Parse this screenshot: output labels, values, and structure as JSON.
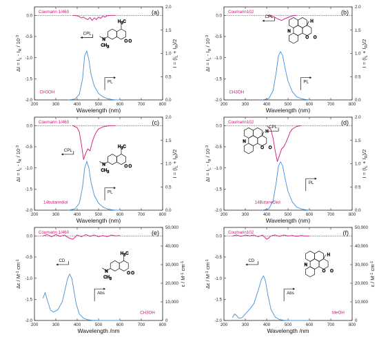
{
  "colors": {
    "cpl_cd": "#d4147a",
    "pl_abs": "#3f8fd9",
    "axis": "#222222",
    "baseline": "#333333"
  },
  "chart_data": [
    {
      "panel": "(a)",
      "type": "line",
      "dye": "Coumarin 1/460",
      "solvent": "CH3OH",
      "xlabel": "Wavelength (nm)",
      "ylabel_left": "ΔI = I_L - I_R / 10^-3",
      "ylabel_right": "I = (I_L + I_R)/2",
      "xlim": [
        200,
        800
      ],
      "ylim_left": [
        -2.0,
        0.2
      ],
      "ylim_right": [
        0.0,
        2.0
      ],
      "xticks": [
        "200",
        "300",
        "400",
        "500",
        "600",
        "700",
        "800"
      ],
      "yticks_left": [
        "0.0",
        "-0.5",
        "-1.0",
        "-1.5",
        "-2.0"
      ],
      "yticks_right": [
        "0.0",
        "0.5",
        "1.0",
        "1.5",
        "2.0"
      ],
      "annotations": [
        {
          "text": "CPL",
          "dir": "left"
        },
        {
          "text": "PL",
          "dir": "right"
        }
      ],
      "series": [
        {
          "name": "CPL",
          "axis": "left",
          "x": [
            380,
            400,
            410,
            420,
            430,
            440,
            450,
            460,
            470,
            480,
            490,
            500,
            510,
            520,
            530,
            540,
            560,
            580
          ],
          "y": [
            0.0,
            -0.01,
            -0.03,
            -0.06,
            -0.04,
            -0.08,
            -0.1,
            -0.05,
            -0.12,
            -0.06,
            -0.1,
            -0.04,
            -0.07,
            -0.02,
            -0.04,
            -0.01,
            0.0,
            0.0
          ]
        },
        {
          "name": "PL",
          "axis": "right",
          "x": [
            360,
            390,
            410,
            425,
            435,
            445,
            455,
            465,
            480,
            500,
            520,
            540,
            560,
            580,
            600
          ],
          "y": [
            0.0,
            0.02,
            0.12,
            0.45,
            0.95,
            1.05,
            0.85,
            0.55,
            0.3,
            0.14,
            0.07,
            0.03,
            0.01,
            0.0,
            0.0
          ]
        }
      ]
    },
    {
      "panel": "(b)",
      "type": "line",
      "dye": "Coumarin102",
      "solvent": "CH3OH",
      "xlabel": "Wavelength (nm)",
      "ylabel_left": "ΔI = I_L - I_R / 10^-3",
      "ylabel_right": "I = (I_L + I_R)/2",
      "xlim": [
        200,
        800
      ],
      "ylim_left": [
        -2.0,
        0.2
      ],
      "ylim_right": [
        0.0,
        2.0
      ],
      "xticks": [
        "200",
        "300",
        "400",
        "500",
        "600",
        "700",
        "800"
      ],
      "yticks_left": [
        "0.0",
        "-0.5",
        "-1.0",
        "-1.5",
        "-2.0"
      ],
      "yticks_right": [
        "0.0",
        "0.5",
        "1.0",
        "1.5",
        "2.0"
      ],
      "annotations": [
        {
          "text": "CPL",
          "dir": "left"
        },
        {
          "text": "PL",
          "dir": "right"
        }
      ],
      "series": [
        {
          "name": "CPL",
          "axis": "left",
          "x": [
            400,
            420,
            430,
            440,
            450,
            460,
            470,
            480,
            490,
            500,
            510,
            520,
            540
          ],
          "y": [
            0.0,
            -0.02,
            -0.03,
            -0.05,
            -0.08,
            -0.1,
            -0.12,
            -0.09,
            -0.07,
            -0.05,
            -0.03,
            -0.01,
            0.0
          ]
        },
        {
          "name": "PL",
          "axis": "right",
          "x": [
            380,
            410,
            430,
            445,
            455,
            465,
            475,
            485,
            500,
            520,
            540,
            560,
            580,
            600
          ],
          "y": [
            0.0,
            0.03,
            0.2,
            0.6,
            0.95,
            1.04,
            0.95,
            0.7,
            0.4,
            0.18,
            0.07,
            0.03,
            0.01,
            0.0
          ]
        }
      ]
    },
    {
      "panel": "(c)",
      "type": "line",
      "dye": "Coumarin 1/460",
      "solvent": "14butanediol",
      "xlabel": "Wavelength (nm)",
      "ylabel_left": "ΔI = I_L - I_R / 10^-3",
      "ylabel_right": "I = (I_L + I_R)/2",
      "xlim": [
        200,
        800
      ],
      "ylim_left": [
        -2.0,
        0.2
      ],
      "ylim_right": [
        0.0,
        2.0
      ],
      "xticks": [
        "200",
        "300",
        "400",
        "500",
        "600",
        "700",
        "800"
      ],
      "yticks_left": [
        "0.0",
        "-0.5",
        "-1.0",
        "-1.5",
        "-2.0"
      ],
      "yticks_right": [
        "0.0",
        "0.5",
        "1.0",
        "1.5",
        "2.0"
      ],
      "annotations": [
        {
          "text": "CPL",
          "dir": "left"
        },
        {
          "text": "PL",
          "dir": "right"
        }
      ],
      "series": [
        {
          "name": "CPL",
          "axis": "left",
          "x": [
            380,
            400,
            410,
            420,
            430,
            440,
            450,
            460,
            470,
            480,
            490,
            500,
            520,
            540,
            560,
            580
          ],
          "y": [
            0.0,
            -0.05,
            -0.15,
            -0.45,
            -0.8,
            -0.65,
            -0.55,
            -0.6,
            -0.4,
            -0.25,
            -0.15,
            -0.08,
            -0.03,
            -0.01,
            0.0,
            0.0
          ]
        },
        {
          "name": "PL",
          "axis": "right",
          "x": [
            360,
            390,
            410,
            425,
            435,
            445,
            455,
            465,
            480,
            500,
            520,
            540,
            560,
            580,
            600
          ],
          "y": [
            0.0,
            0.03,
            0.15,
            0.5,
            0.9,
            1.05,
            0.9,
            0.6,
            0.32,
            0.15,
            0.07,
            0.03,
            0.01,
            0.0,
            0.0
          ]
        }
      ]
    },
    {
      "panel": "(d)",
      "type": "line",
      "dye": "Coumarin102",
      "solvent": "14ButaneDiol",
      "xlabel": "Wavelength (nm)",
      "ylabel_left": "ΔI = I_L - I_R / 10^-3",
      "ylabel_right": "I = (I_L + I_R)/2",
      "xlim": [
        200,
        800
      ],
      "ylim_left": [
        -2.0,
        0.2
      ],
      "ylim_right": [
        0.0,
        2.0
      ],
      "xticks": [
        "200",
        "300",
        "400",
        "500",
        "600",
        "700",
        "800"
      ],
      "yticks_left": [
        "0.0",
        "-0.5",
        "-1.0",
        "-1.5",
        "-2.0"
      ],
      "yticks_right": [
        "0.0",
        "0.5",
        "1.0",
        "1.5",
        "2.0"
      ],
      "annotations": [
        {
          "text": "CPL",
          "dir": "left"
        },
        {
          "text": "PL",
          "dir": "right"
        }
      ],
      "series": [
        {
          "name": "CPL",
          "axis": "left",
          "x": [
            400,
            420,
            430,
            440,
            450,
            460,
            470,
            480,
            490,
            500,
            510,
            520,
            540,
            560
          ],
          "y": [
            0.0,
            -0.1,
            -0.3,
            -0.6,
            -0.85,
            -0.7,
            -0.55,
            -0.5,
            -0.4,
            -0.28,
            -0.15,
            -0.08,
            -0.02,
            0.0
          ]
        },
        {
          "name": "PL",
          "axis": "right",
          "x": [
            380,
            410,
            430,
            445,
            455,
            465,
            475,
            485,
            500,
            520,
            540,
            560,
            580,
            600
          ],
          "y": [
            0.0,
            0.03,
            0.2,
            0.6,
            0.95,
            1.04,
            0.95,
            0.7,
            0.4,
            0.18,
            0.07,
            0.03,
            0.01,
            0.0
          ]
        }
      ]
    },
    {
      "panel": "(e)",
      "type": "line",
      "dye": "Coumarin 1/460",
      "solvent": "CH3OH",
      "xlabel": "Wavelength /nm",
      "ylabel_left": "Δε / M^-1 cm^-1",
      "ylabel_right": "ε / M^-1 cm^-1",
      "xlim": [
        200,
        800
      ],
      "ylim_left": [
        -2.0,
        0.2
      ],
      "ylim_right": [
        0,
        50000
      ],
      "xticks": [
        "200",
        "300",
        "400",
        "500",
        "600",
        "700",
        "800"
      ],
      "yticks_left": [
        "0.0",
        "-0.5",
        "-1.0",
        "-1.5",
        "-2.0"
      ],
      "yticks_right": [
        "0",
        "10,000",
        "20,000",
        "30,000",
        "40,000",
        "50,000"
      ],
      "annotations": [
        {
          "text": "CD",
          "dir": "left"
        },
        {
          "text": "Abs",
          "dir": "right"
        }
      ],
      "series": [
        {
          "name": "CD",
          "axis": "left",
          "x": [
            240,
            260,
            280,
            300,
            320,
            340,
            360,
            380,
            400,
            420,
            440,
            460,
            480,
            500,
            520,
            540,
            560,
            580,
            600
          ],
          "y": [
            0.0,
            0.03,
            -0.02,
            0.03,
            -0.01,
            0.02,
            -0.05,
            -0.08,
            0.02,
            -0.02,
            0.03,
            -0.01,
            0.02,
            -0.02,
            0.01,
            -0.02,
            0.02,
            0.0,
            0.01
          ]
        },
        {
          "name": "Abs",
          "axis": "right",
          "x": [
            240,
            250,
            260,
            275,
            290,
            310,
            330,
            345,
            355,
            365,
            375,
            385,
            395,
            410,
            430,
            450,
            470,
            500,
            540,
            600
          ],
          "y": [
            12000,
            15000,
            11000,
            5500,
            4500,
            5800,
            10000,
            17500,
            22500,
            25000,
            22500,
            16000,
            9000,
            3500,
            1200,
            400,
            100,
            0,
            0,
            0
          ]
        }
      ]
    },
    {
      "panel": "(f)",
      "type": "line",
      "dye": "Coumarin102",
      "solvent": "MeOH",
      "xlabel": "Wavelength /nm",
      "ylabel_left": "Δε / M^-1 cm^-1",
      "ylabel_right": "ε / M^-1 cm^-1",
      "xlim": [
        200,
        800
      ],
      "ylim_left": [
        -2.0,
        0.2
      ],
      "ylim_right": [
        0,
        50000
      ],
      "xticks": [
        "200",
        "300",
        "400",
        "500",
        "600",
        "700",
        "800"
      ],
      "yticks_left": [
        "0.0",
        "-0.5",
        "-1.0",
        "-1.5",
        "-2.0"
      ],
      "yticks_right": [
        "0",
        "10,000",
        "20,000",
        "30,000",
        "40,000",
        "50,000"
      ],
      "annotations": [
        {
          "text": "CD",
          "dir": "left"
        },
        {
          "text": "Abs",
          "dir": "right"
        }
      ],
      "series": [
        {
          "name": "CD",
          "axis": "left",
          "x": [
            240,
            260,
            280,
            300,
            320,
            340,
            360,
            380,
            400,
            410,
            420,
            440,
            460,
            480,
            500,
            520,
            540,
            560,
            580,
            600
          ],
          "y": [
            0.0,
            0.02,
            -0.01,
            0.02,
            0.0,
            0.02,
            -0.02,
            0.02,
            -0.08,
            -0.05,
            0.0,
            0.02,
            -0.01,
            0.02,
            0.0,
            0.01,
            -0.01,
            0.01,
            0.0,
            0.0
          ]
        },
        {
          "name": "Abs",
          "axis": "right",
          "x": [
            240,
            250,
            260,
            270,
            285,
            300,
            320,
            340,
            360,
            375,
            385,
            395,
            405,
            420,
            440,
            460,
            480,
            500,
            540,
            600
          ],
          "y": [
            1500,
            3500,
            2500,
            1200,
            1500,
            3500,
            6000,
            9000,
            16000,
            22000,
            24000,
            21000,
            14000,
            6000,
            1800,
            500,
            100,
            0,
            0,
            0
          ]
        }
      ]
    }
  ]
}
